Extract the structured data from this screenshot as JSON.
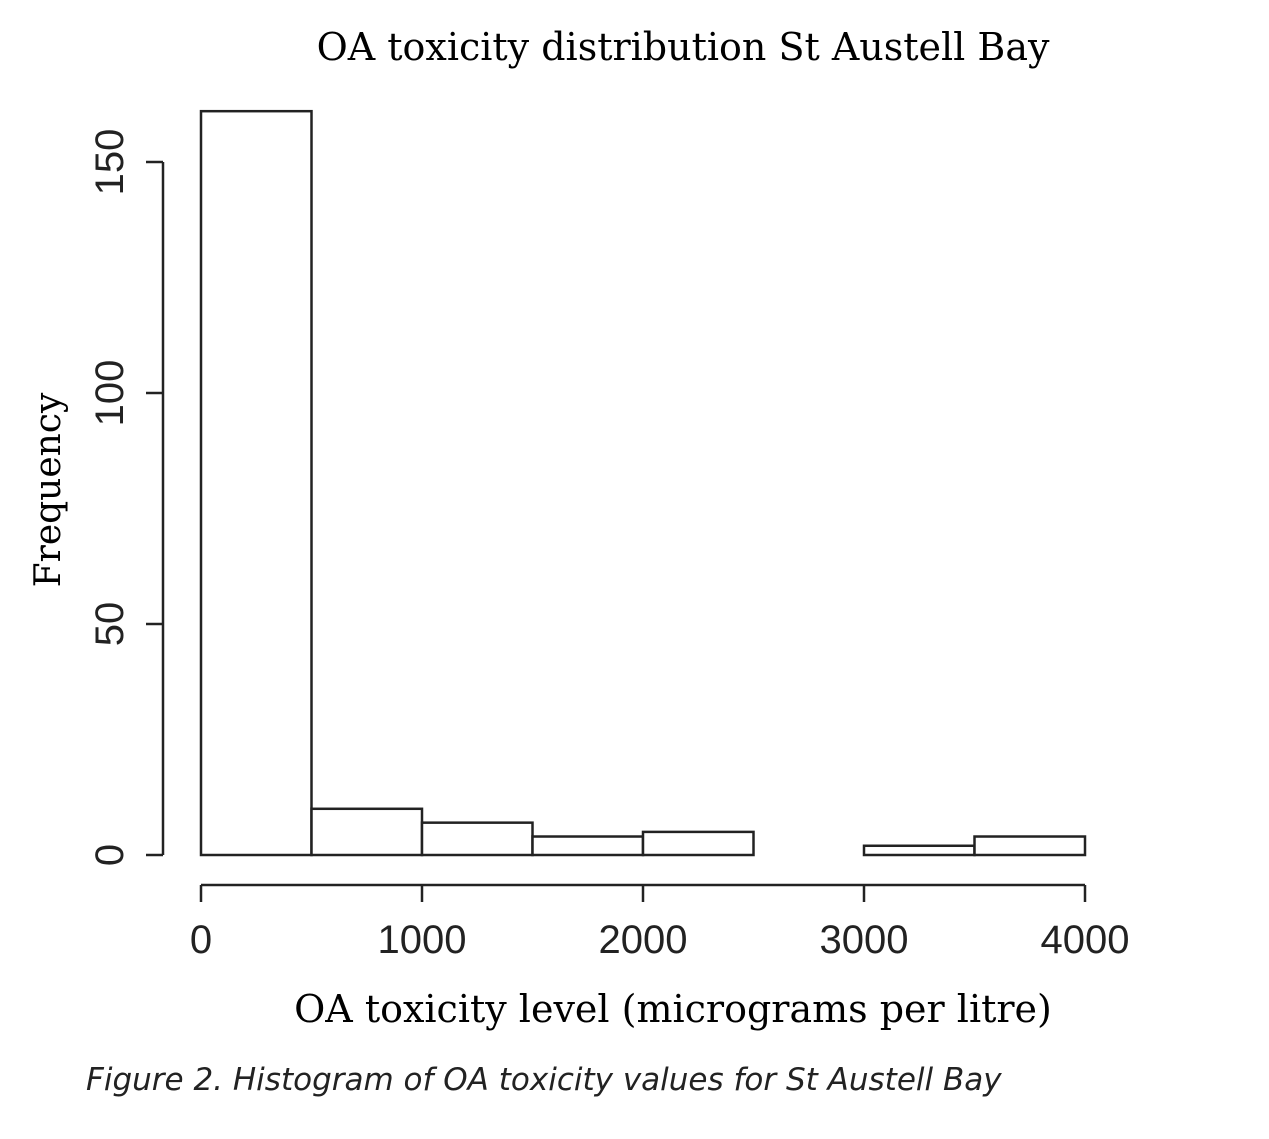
{
  "chart_data": {
    "type": "bar",
    "title": "OA toxicity distribution St Austell Bay",
    "xlabel": "OA toxicity level (micrograms per litre)",
    "ylabel": "Frequency",
    "bins": [
      {
        "from": 0,
        "to": 500,
        "count": 161
      },
      {
        "from": 500,
        "to": 1000,
        "count": 10
      },
      {
        "from": 1000,
        "to": 1500,
        "count": 7
      },
      {
        "from": 1500,
        "to": 2000,
        "count": 4
      },
      {
        "from": 2000,
        "to": 2500,
        "count": 5
      },
      {
        "from": 2500,
        "to": 3000,
        "count": 0
      },
      {
        "from": 3000,
        "to": 3500,
        "count": 2
      },
      {
        "from": 3500,
        "to": 4000,
        "count": 4
      }
    ],
    "xlim": [
      0,
      4000
    ],
    "ylim": [
      0,
      150
    ],
    "x_ticks": [
      "0",
      "1000",
      "2000",
      "3000",
      "4000"
    ],
    "y_ticks": [
      "0",
      "50",
      "100",
      "150"
    ],
    "grid": false
  },
  "caption": "Figure 2. Histogram of OA toxicity values for St Austell Bay"
}
